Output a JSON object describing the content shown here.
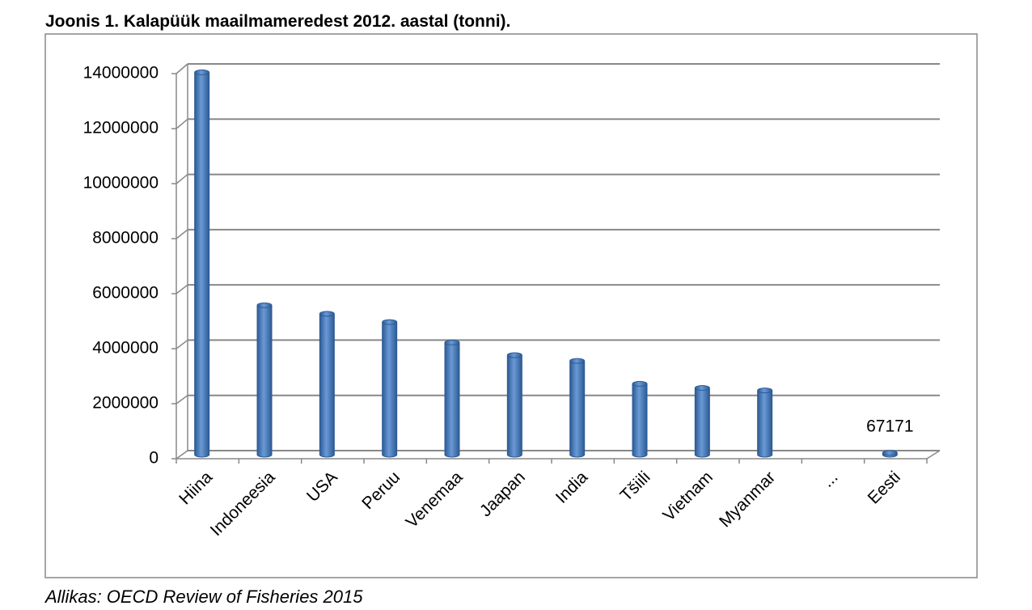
{
  "chart_data": {
    "type": "bar",
    "title": "Joonis 1. Kalapüük maailmameredest 2012. aastal (tonni).",
    "source": "Allikas: OECD Review of Fisheries 2015",
    "categories": [
      "Hiina",
      "Indoneesia",
      "USA",
      "Peruu",
      "Venemaa",
      "Jaapan",
      "India",
      "Tšiili",
      "Vietnam",
      "Myanmar",
      "...",
      "Eesti"
    ],
    "values": [
      13870000,
      5420000,
      5110000,
      4810000,
      4070000,
      3610000,
      3400000,
      2570000,
      2420000,
      2330000,
      null,
      67171
    ],
    "labeled_index": 11,
    "color": "#4a7ebb",
    "ylim": [
      0,
      14000000
    ],
    "yticks": [
      0,
      2000000,
      4000000,
      6000000,
      8000000,
      10000000,
      12000000,
      14000000
    ],
    "grid": true
  }
}
